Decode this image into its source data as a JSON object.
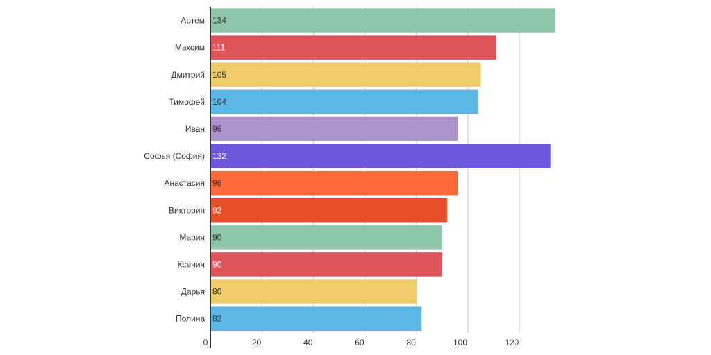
{
  "chart_data": {
    "type": "bar",
    "orientation": "horizontal",
    "categories": [
      "Артем",
      "Максим",
      "Дмитрий",
      "Тимофей",
      "Иван",
      "Софья (София)",
      "Анастасия",
      "Виктория",
      "Мария",
      "Ксения",
      "Дарья",
      "Полина"
    ],
    "values": [
      134,
      111,
      105,
      104,
      96,
      132,
      96,
      92,
      90,
      90,
      80,
      82
    ],
    "colors": [
      "#8fc5a9",
      "#de5459",
      "#eecc6b",
      "#5db7e6",
      "#ad91c9",
      "#6d55dc",
      "#ff6a3a",
      "#e54e26",
      "#8fc5a9",
      "#de5459",
      "#eecc6b",
      "#5db7e6"
    ],
    "value_label_colors": [
      "#333333",
      "#ffffff",
      "#333333",
      "#333333",
      "#333333",
      "#ffffff",
      "#333333",
      "#ffffff",
      "#333333",
      "#ffffff",
      "#333333",
      "#333333"
    ],
    "xticks": [
      0,
      20,
      40,
      60,
      80,
      100,
      120
    ],
    "xlim": [
      0,
      140
    ],
    "grid": true,
    "legend": "none",
    "title": "",
    "xlabel": "",
    "ylabel": ""
  }
}
